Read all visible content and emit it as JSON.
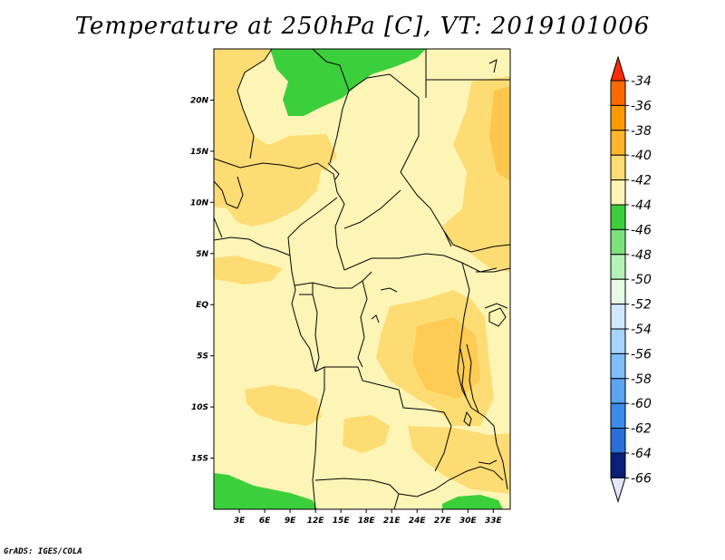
{
  "title": "Temperature at 250hPa [C], VT: 2019101006",
  "credit": "GrADS: IGES/COLA",
  "map": {
    "lat_range": [
      -20,
      25
    ],
    "lon_range": [
      0,
      35
    ],
    "lat_ticks": [
      {
        "v": 20,
        "t": "20N"
      },
      {
        "v": 15,
        "t": "15N"
      },
      {
        "v": 10,
        "t": "10N"
      },
      {
        "v": 5,
        "t": "5N"
      },
      {
        "v": 0,
        "t": "EQ"
      },
      {
        "v": -5,
        "t": "5S"
      },
      {
        "v": -10,
        "t": "10S"
      },
      {
        "v": -15,
        "t": "15S"
      }
    ],
    "lon_ticks": [
      {
        "v": 3,
        "t": "3E"
      },
      {
        "v": 6,
        "t": "6E"
      },
      {
        "v": 9,
        "t": "9E"
      },
      {
        "v": 12,
        "t": "12E"
      },
      {
        "v": 15,
        "t": "15E"
      },
      {
        "v": 18,
        "t": "18E"
      },
      {
        "v": 21,
        "t": "21E"
      },
      {
        "v": 24,
        "t": "24E"
      },
      {
        "v": 27,
        "t": "27E"
      },
      {
        "v": 30,
        "t": "30E"
      },
      {
        "v": 33,
        "t": "33E"
      }
    ]
  },
  "colorbar": {
    "levels": [
      "-34",
      "-36",
      "-38",
      "-40",
      "-42",
      "-44",
      "-46",
      "-48",
      "-50",
      "-52",
      "-54",
      "-56",
      "-58",
      "-60",
      "-62",
      "-64",
      "-66"
    ],
    "colors": [
      "#ff6a00",
      "#ff9a00",
      "#ffb52e",
      "#fedc74",
      "#fdf5b5",
      "#3ccf3c",
      "#7be27b",
      "#b6f2b6",
      "#e6fbe6",
      "#cfe8ff",
      "#a6d4ff",
      "#7fbdf8",
      "#5aa4f0",
      "#3c8be8",
      "#2a6fd9",
      "#1850b8",
      "#0a1f7a"
    ],
    "top_arrow_color": "#ff2a00",
    "bottom_arrow_color": "#e6e6ff"
  },
  "field_colors": {
    "base": "#fdf5b5",
    "warm": "#fedc74",
    "warmer": "#ffb52e",
    "cold": "#3ccf3c"
  }
}
